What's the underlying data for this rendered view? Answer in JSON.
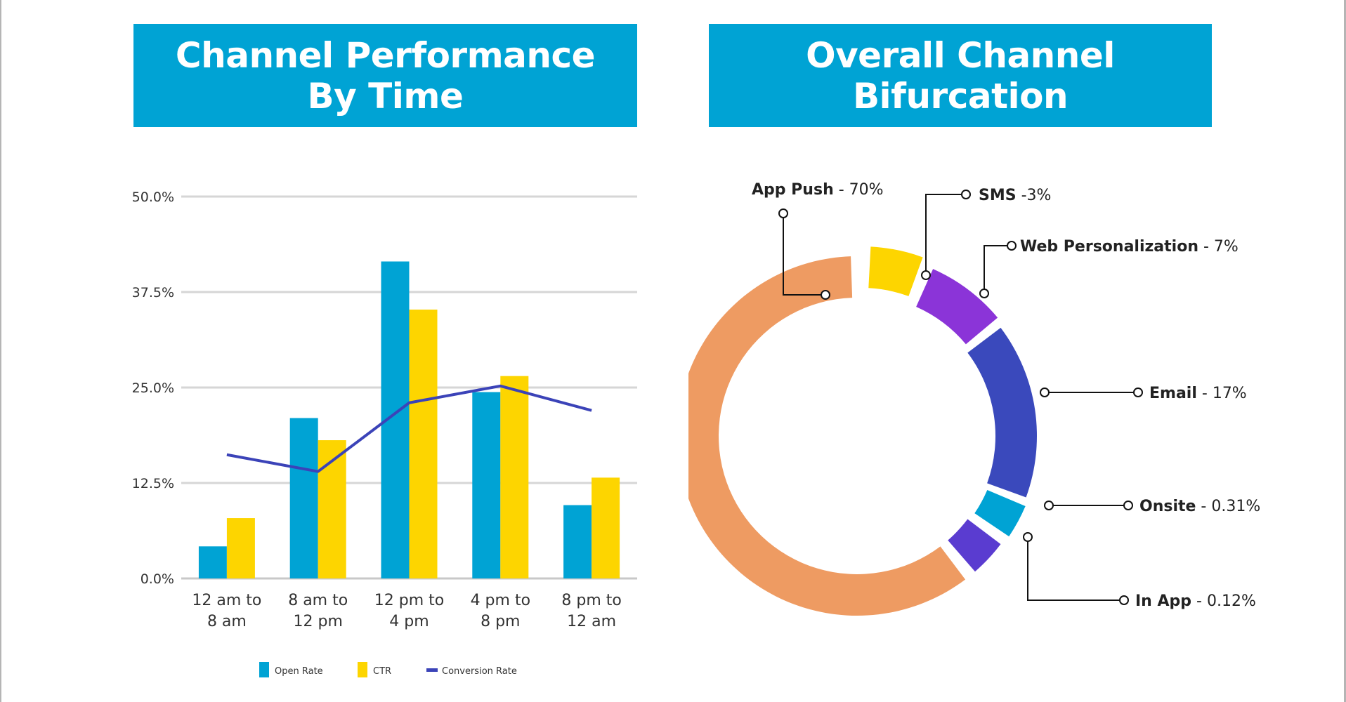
{
  "banners": {
    "left": {
      "line1": "Channel Performance",
      "line2": "By Time"
    },
    "right": {
      "line1": "Overall Channel",
      "line2": "Bifurcation"
    }
  },
  "colors": {
    "banner": "#00a3d4",
    "open_rate": "#00a3d4",
    "ctr": "#fdd500",
    "conversion_rate": "#3b43b8",
    "app_push": "#ee9b62",
    "sms": "#fdd500",
    "web_personalization": "#8b34d8",
    "email": "#3a49bc",
    "onsite": "#00a3d4",
    "in_app": "#5a3cd0"
  },
  "chart_data": [
    {
      "type": "bar",
      "title": "Channel Performance By Time",
      "categories": [
        [
          "12 am to",
          "8 am"
        ],
        [
          "8 am to",
          "12 pm"
        ],
        [
          "12 pm to",
          "4 pm"
        ],
        [
          "4 pm to",
          "8 pm"
        ],
        [
          "8 pm to",
          "12 am"
        ]
      ],
      "series": [
        {
          "name": "Open Rate",
          "kind": "bar",
          "values": [
            4.2,
            21.0,
            41.5,
            24.4,
            9.6
          ]
        },
        {
          "name": "CTR",
          "kind": "bar",
          "values": [
            7.9,
            18.1,
            35.2,
            26.5,
            13.2
          ]
        },
        {
          "name": "Conversion Rate",
          "kind": "line",
          "values": [
            16.2,
            14.0,
            23.0,
            25.2,
            22.0
          ]
        }
      ],
      "yticks": [
        "0.0%",
        "12.5%",
        "25.0%",
        "37.5%",
        "50.0%"
      ],
      "ylim": [
        0,
        50
      ],
      "grid": true,
      "legend": [
        "Open Rate",
        "CTR",
        "Conversion Rate"
      ],
      "legend_position": "bottom"
    },
    {
      "type": "pie",
      "title": "Overall Channel Bifurcation",
      "variant": "donut",
      "slices": [
        {
          "name": "App Push",
          "value_label": "- 70%",
          "value": 70,
          "color_key": "app_push"
        },
        {
          "name": "SMS",
          "value_label": "-3%",
          "value": 3,
          "color_key": "sms"
        },
        {
          "name": "Web Personalization",
          "value_label": "- 7%",
          "value": 7,
          "color_key": "web_personalization"
        },
        {
          "name": "Email",
          "value_label": "- 17%",
          "value": 17,
          "color_key": "email"
        },
        {
          "name": "Onsite",
          "value_label": "- 0.31%",
          "value": 0.31,
          "color_key": "onsite"
        },
        {
          "name": "In App",
          "value_label": "- 0.12%",
          "value": 0.12,
          "color_key": "in_app"
        }
      ]
    }
  ]
}
